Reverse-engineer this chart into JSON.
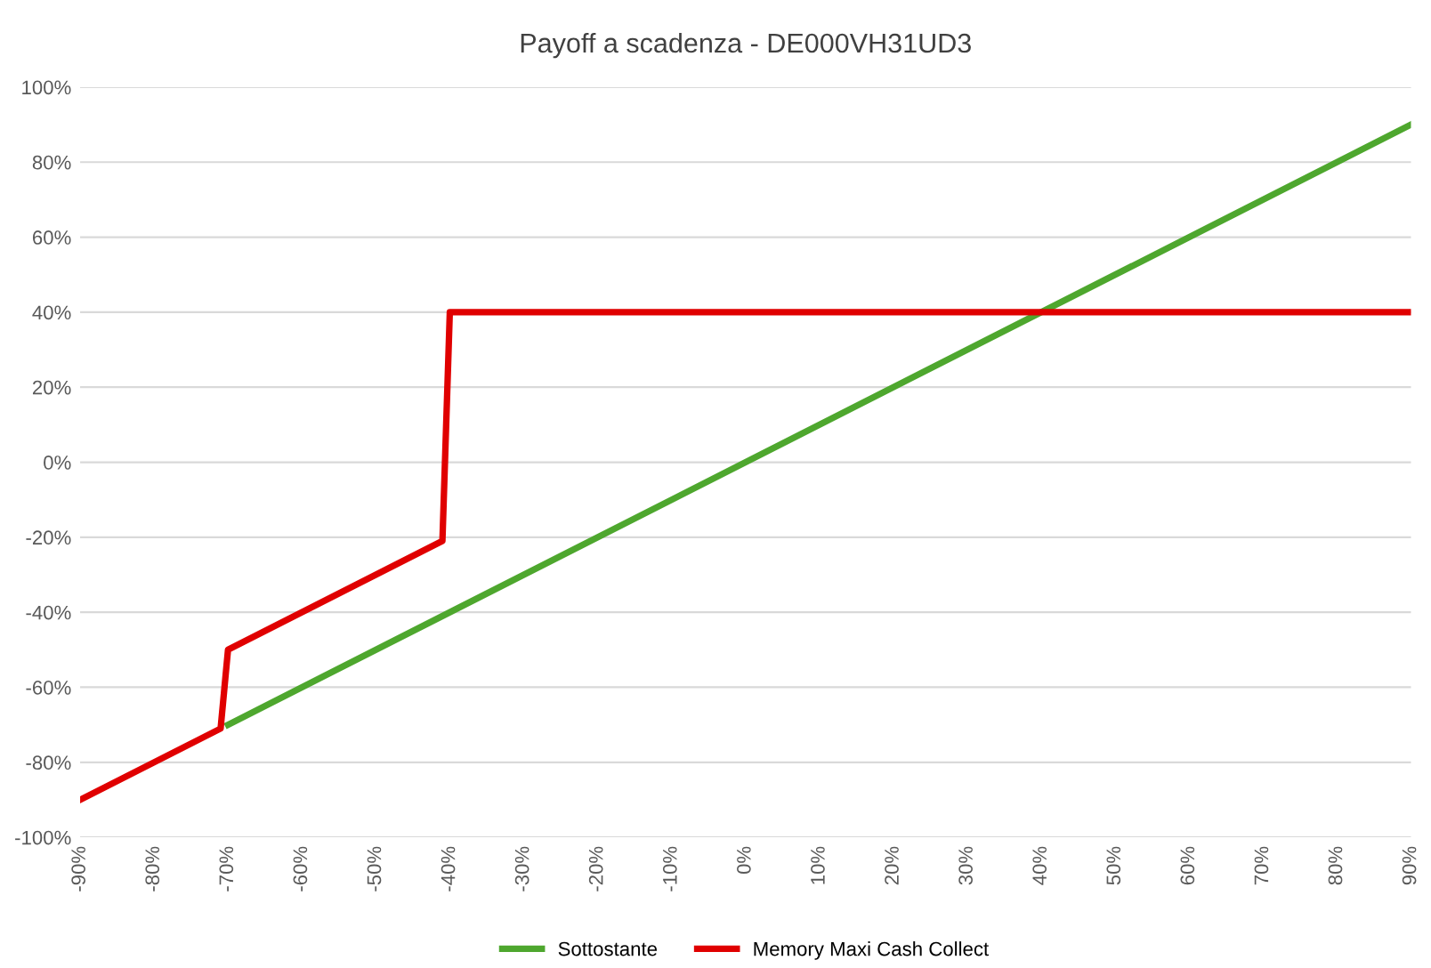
{
  "chart_data": {
    "type": "line",
    "title": "Payoff a scadenza - DE000VH31UD3",
    "series": [
      {
        "name": "Sottostante",
        "color": "#4ea72e",
        "x": [
          -70,
          90
        ],
        "values": [
          -70,
          90
        ]
      },
      {
        "name": "Memory Maxi Cash Collect",
        "color": "#e00000",
        "x": [
          -90,
          -71,
          -70,
          -41,
          -40,
          90
        ],
        "values": [
          -90,
          -71,
          -50,
          -21,
          40,
          40
        ]
      }
    ],
    "xlim": [
      -90,
      90
    ],
    "xticks": [
      {
        "value": -90,
        "label": "-90%"
      },
      {
        "value": -80,
        "label": "-80%"
      },
      {
        "value": -70,
        "label": "-70%"
      },
      {
        "value": -60,
        "label": "-60%"
      },
      {
        "value": -50,
        "label": "-50%"
      },
      {
        "value": -40,
        "label": "-40%"
      },
      {
        "value": -30,
        "label": "-30%"
      },
      {
        "value": -20,
        "label": "-20%"
      },
      {
        "value": -10,
        "label": "-10%"
      },
      {
        "value": 0,
        "label": "0%"
      },
      {
        "value": 10,
        "label": "10%"
      },
      {
        "value": 20,
        "label": "20%"
      },
      {
        "value": 30,
        "label": "30%"
      },
      {
        "value": 40,
        "label": "40%"
      },
      {
        "value": 50,
        "label": "50%"
      },
      {
        "value": 60,
        "label": "60%"
      },
      {
        "value": 70,
        "label": "70%"
      },
      {
        "value": 80,
        "label": "80%"
      },
      {
        "value": 90,
        "label": "90%"
      }
    ],
    "ylim": [
      -100,
      100
    ],
    "yticks": [
      {
        "value": -100,
        "label": "-100%"
      },
      {
        "value": -80,
        "label": "-80%"
      },
      {
        "value": -60,
        "label": "-60%"
      },
      {
        "value": -40,
        "label": "-40%"
      },
      {
        "value": -20,
        "label": "-20%"
      },
      {
        "value": 0,
        "label": "0%"
      },
      {
        "value": 20,
        "label": "20%"
      },
      {
        "value": 40,
        "label": "40%"
      },
      {
        "value": 60,
        "label": "60%"
      },
      {
        "value": 80,
        "label": "80%"
      },
      {
        "value": 100,
        "label": "100%"
      }
    ],
    "grid": "y",
    "legend": "bottom",
    "marker": "none",
    "line_style": "solid"
  }
}
